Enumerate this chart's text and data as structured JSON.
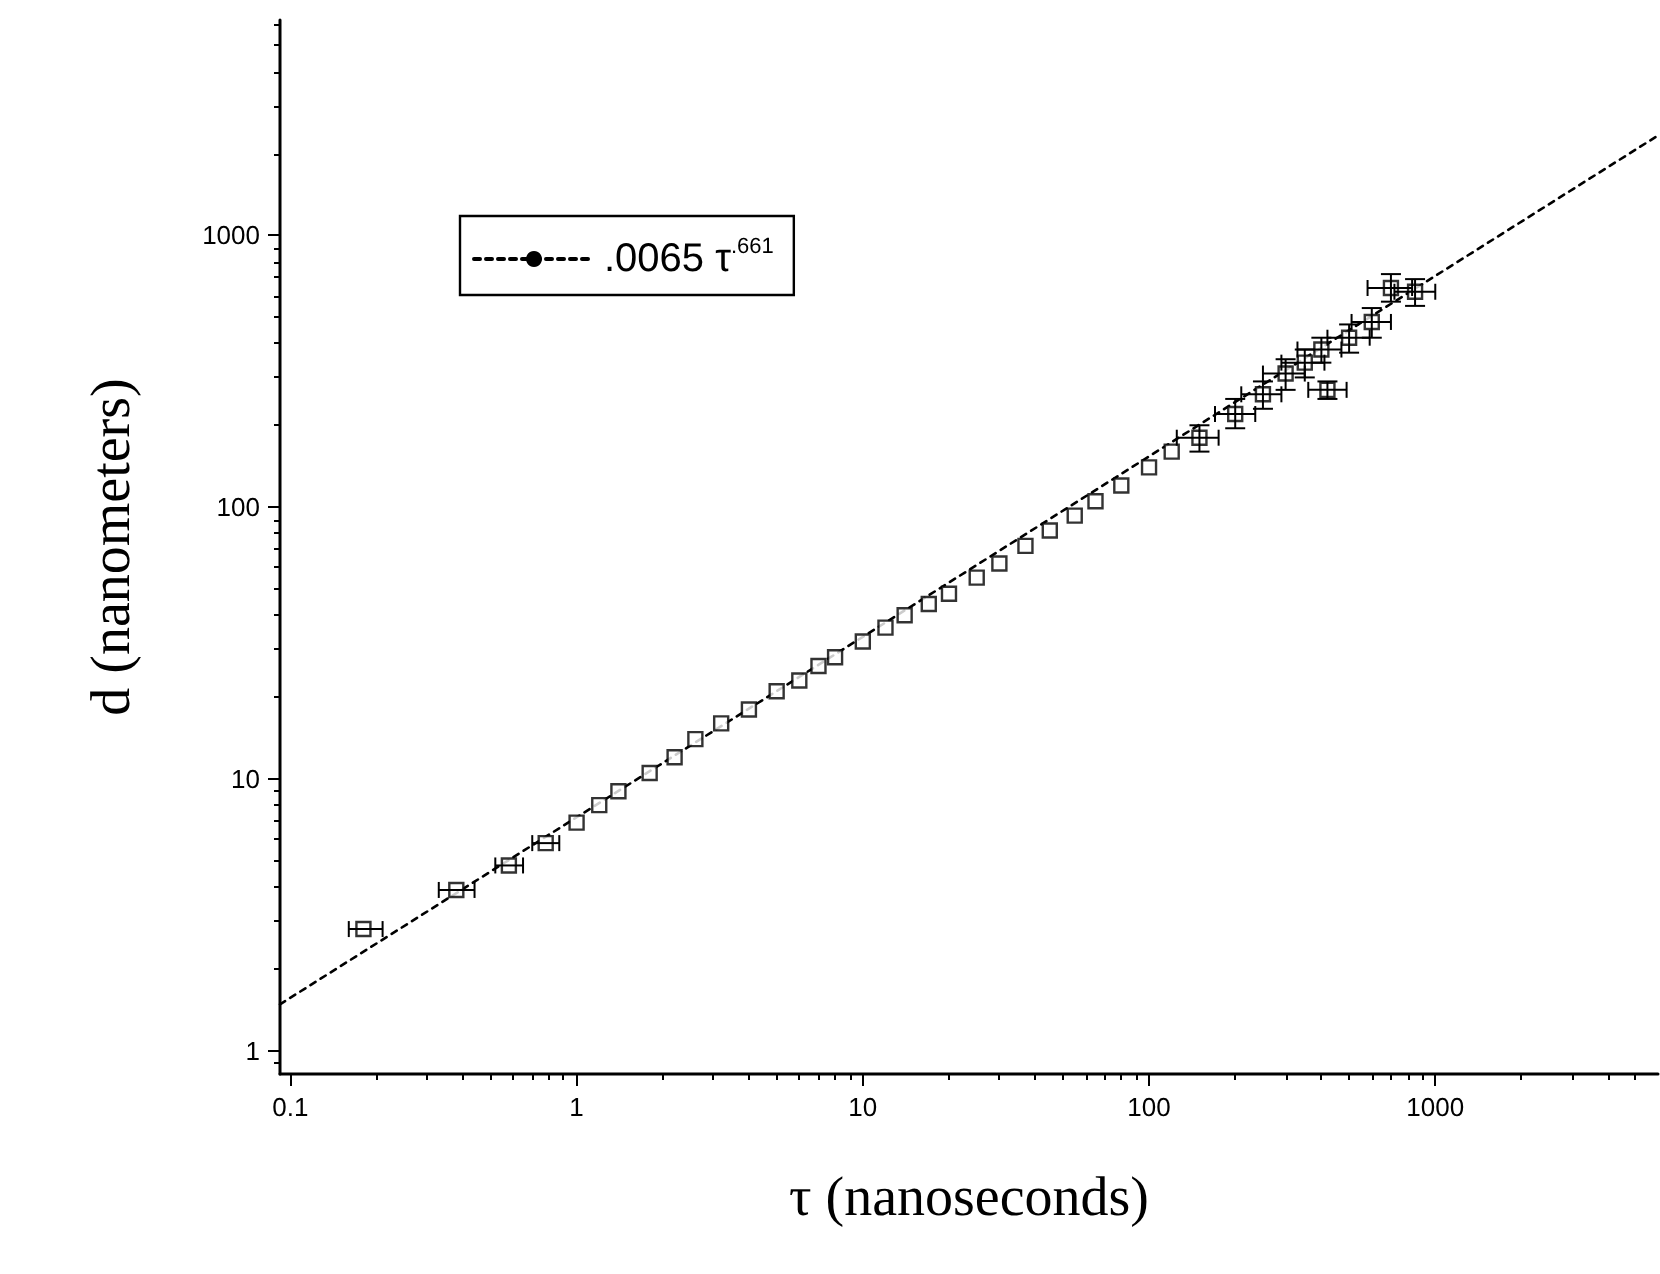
{
  "chart_data": {
    "type": "scatter",
    "xlabel": "τ (nanoseconds)",
    "ylabel": "d (nanometers)",
    "log": "xy",
    "xlim": [
      0.092,
      6000
    ],
    "ylim": [
      0.82,
      6200
    ],
    "xticks": [
      0.1,
      1,
      10,
      100,
      1000
    ],
    "yticks": [
      1,
      10,
      100,
      1000
    ],
    "grid": false,
    "legend": "top left",
    "marker": "square",
    "series": [
      {
        "color": "#000000",
        "x": [
          0.18,
          0.38,
          0.58,
          0.78,
          1.0,
          1.2,
          1.4,
          1.8,
          2.2,
          2.6,
          3.2,
          4,
          5,
          6,
          7,
          8,
          10,
          12,
          14,
          17,
          20,
          25,
          30,
          37,
          45,
          55,
          65,
          80,
          100,
          120,
          150,
          200,
          250,
          300,
          350,
          400,
          420,
          500,
          600,
          700,
          850
        ],
        "values": [
          2.8,
          3.9,
          4.8,
          5.8,
          6.9,
          8,
          9,
          10.5,
          12,
          14,
          16,
          18,
          21,
          23,
          26,
          28,
          32,
          36,
          40,
          44,
          48,
          55,
          62,
          72,
          82,
          93,
          105,
          120,
          140,
          160,
          180,
          220,
          260,
          310,
          340,
          380,
          270,
          420,
          480,
          640,
          620
        ],
        "errors": [
          null,
          null,
          null,
          null,
          null,
          null,
          null,
          null,
          null,
          null,
          null,
          null,
          null,
          null,
          null,
          null,
          null,
          null,
          null,
          null,
          null,
          null,
          null,
          null,
          null,
          null,
          null,
          null,
          null,
          null,
          [
            160,
            200
          ],
          [
            195,
            250
          ],
          [
            230,
            290
          ],
          [
            270,
            350
          ],
          [
            300,
            380
          ],
          [
            340,
            420
          ],
          [
            250,
            290
          ],
          [
            370,
            470
          ],
          [
            420,
            540
          ],
          [
            570,
            720
          ],
          [
            550,
            690
          ]
        ],
        "xerrors": [
          [
            0.16,
            0.21
          ],
          [
            0.33,
            0.44
          ],
          [
            0.52,
            0.65
          ],
          [
            0.7,
            0.87
          ],
          null,
          null,
          null,
          null,
          null,
          null,
          null,
          null,
          null,
          null,
          null,
          null,
          null,
          null,
          null,
          null,
          null,
          null,
          null,
          null,
          null,
          null,
          null,
          null,
          null,
          null,
          [
            125,
            175
          ],
          [
            170,
            235
          ],
          [
            210,
            290
          ],
          [
            250,
            350
          ],
          [
            290,
            410
          ],
          [
            330,
            470
          ],
          [
            360,
            490
          ],
          [
            420,
            590
          ],
          [
            510,
            700
          ],
          [
            580,
            830
          ],
          [
            720,
            1000
          ]
        ]
      },
      {
        "type": "line",
        "name": ".0065 τ$^{.661}$",
        "color": "#000000",
        "line_style": "dotted",
        "marker": "none",
        "x": [
          0.092,
          6000
        ],
        "values": [
          1.48,
          2330
        ]
      }
    ]
  }
}
